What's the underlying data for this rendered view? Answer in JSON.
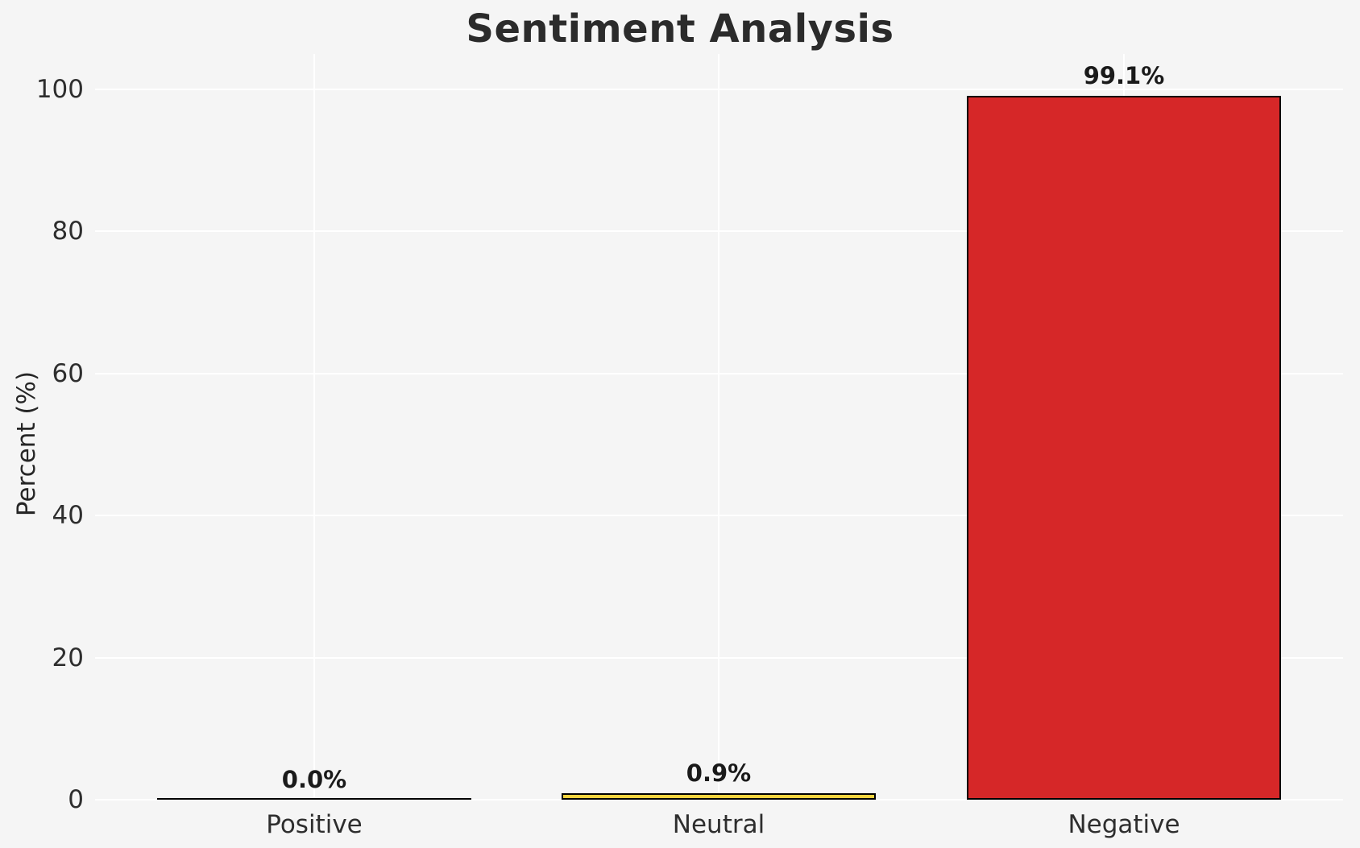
{
  "chart_data": {
    "type": "bar",
    "title": "Sentiment Analysis",
    "xlabel": "",
    "ylabel": "Percent (%)",
    "categories": [
      "Positive",
      "Neutral",
      "Negative"
    ],
    "values": [
      0.0,
      0.9,
      99.1
    ],
    "value_labels": [
      "0.0%",
      "0.9%",
      "99.1%"
    ],
    "bar_colors": [
      null,
      "#f4d33e",
      "#d62728"
    ],
    "bar_edge_color": "#000000",
    "yticks": [
      0,
      20,
      40,
      60,
      80,
      100
    ],
    "ytick_labels": [
      "0",
      "20",
      "40",
      "60",
      "80",
      "100"
    ],
    "ylim": [
      0,
      105
    ],
    "grid": true,
    "gridline_color": "#ffffff",
    "background_color": "#f5f5f5",
    "text_color": "#262626",
    "legend": "none"
  }
}
